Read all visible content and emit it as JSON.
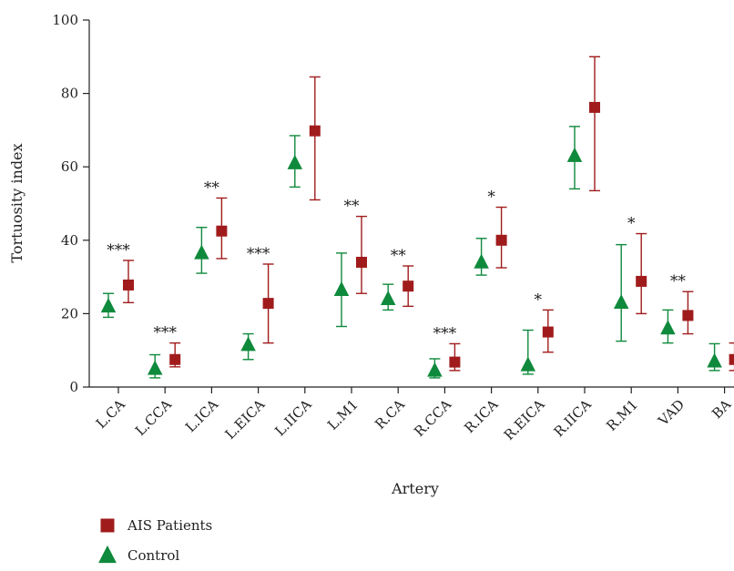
{
  "chart_data": {
    "type": "scatter",
    "title": "",
    "xlabel": "Artery",
    "ylabel": "Tortuosity index",
    "ylim": [
      0,
      100
    ],
    "yticks": [
      0,
      20,
      40,
      60,
      80,
      100
    ],
    "grid": false,
    "legend_position": "bottom-left",
    "categories": [
      "L.CA",
      "L.CCA",
      "L.ICA",
      "L.EICA",
      "L.IICA",
      "L.M1",
      "R.CA",
      "R.CCA",
      "R.ICA",
      "R.EICA",
      "R.IICA",
      "R.M1",
      "VAD",
      "BA"
    ],
    "significance": [
      "***",
      "***",
      "**",
      "***",
      "",
      "**",
      "**",
      "***",
      "*",
      "*",
      "",
      "*",
      "**",
      ""
    ],
    "series": [
      {
        "name": "Control",
        "marker": "triangle",
        "color": "#0f8a3c",
        "mean": [
          22.0,
          5.0,
          36.5,
          11.5,
          61.0,
          26.5,
          24.0,
          4.5,
          34.0,
          6.0,
          63.0,
          23.0,
          16.0,
          7.0
        ],
        "lower": [
          19.0,
          2.5,
          31.0,
          7.5,
          54.5,
          16.5,
          21.0,
          2.5,
          30.5,
          3.5,
          54.0,
          12.5,
          12.0,
          4.5
        ],
        "upper": [
          25.5,
          8.8,
          43.5,
          14.5,
          68.5,
          36.5,
          28.0,
          7.7,
          40.5,
          15.5,
          71.0,
          38.8,
          21.0,
          11.8
        ]
      },
      {
        "name": "AIS Patients",
        "marker": "square",
        "color": "#a01c1c",
        "mean": [
          27.8,
          7.5,
          42.5,
          22.8,
          69.8,
          34.0,
          27.5,
          6.8,
          40.0,
          15.0,
          76.2,
          28.8,
          19.5,
          7.5
        ],
        "lower": [
          23.0,
          5.5,
          35.0,
          12.0,
          51.0,
          25.5,
          22.0,
          4.5,
          32.5,
          9.5,
          53.5,
          20.0,
          14.5,
          4.5
        ],
        "upper": [
          34.5,
          12.0,
          51.5,
          33.5,
          84.5,
          46.5,
          33.0,
          11.8,
          49.0,
          21.0,
          90.0,
          41.8,
          26.0,
          12.0
        ]
      }
    ]
  },
  "legend": [
    {
      "name": "AIS Patients",
      "marker": "square",
      "color": "#a01c1c"
    },
    {
      "name": "Control",
      "marker": "triangle",
      "color": "#0f8a3c"
    }
  ]
}
